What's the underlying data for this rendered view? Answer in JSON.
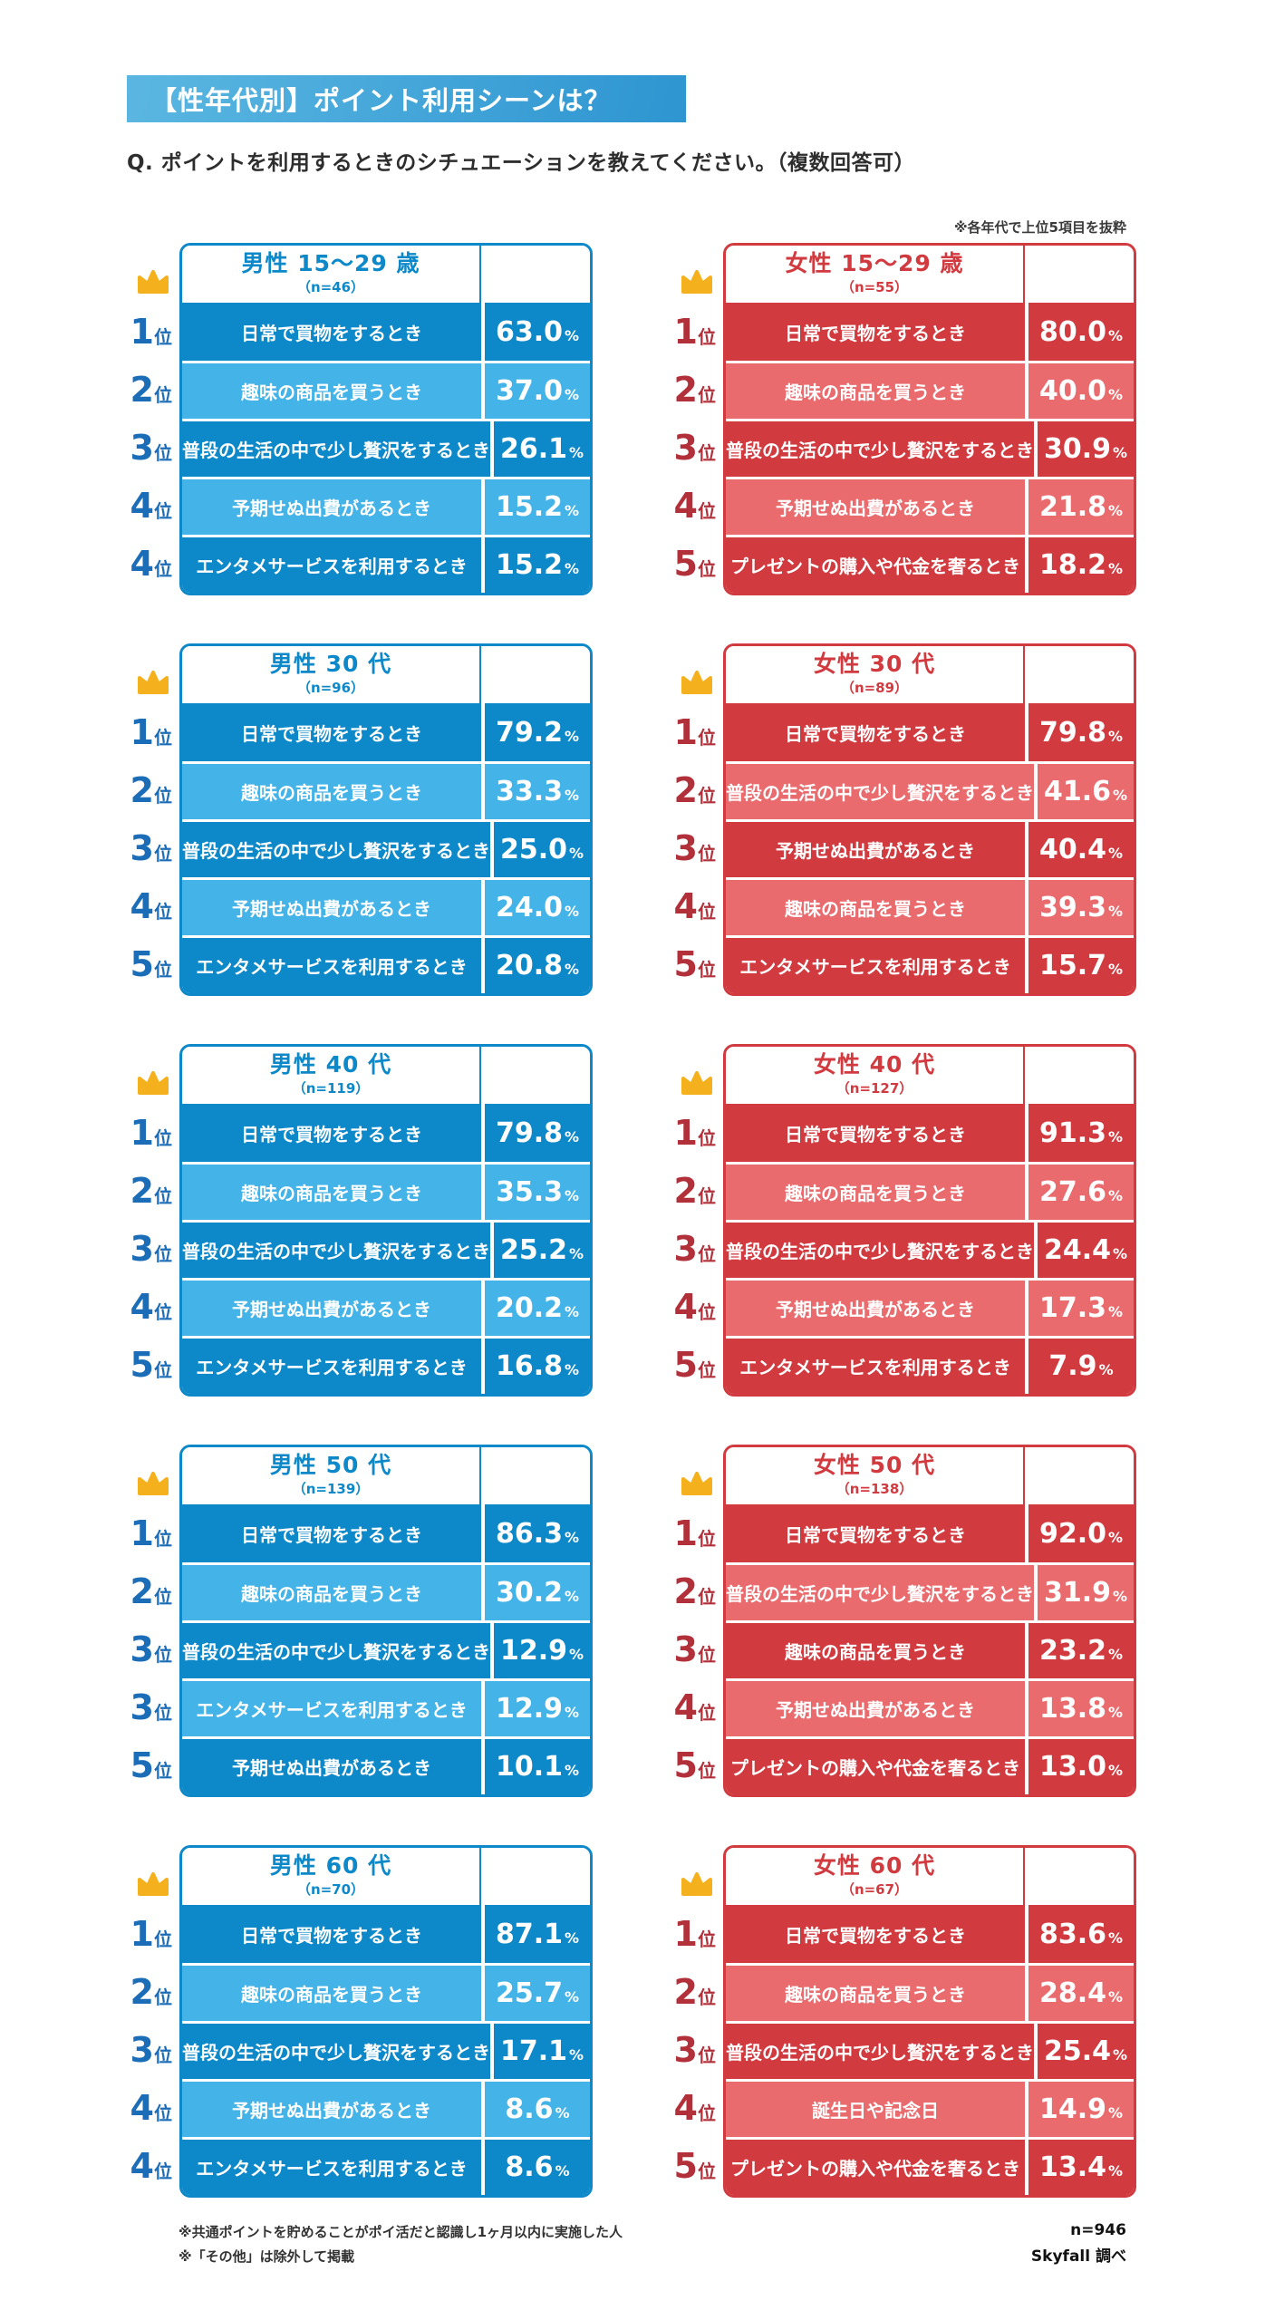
{
  "page": {
    "title": "【性年代別】ポイント利用シーンは？",
    "question": "Q. ポイントを利用するときのシチュエーションを教えてください。（複数回答可）",
    "note": "※各年代で上位5項目を抜粋",
    "footnotes": [
      "※共通ポイントを貯めることがポイ活だと認識し1ヶ月以内に実施した人",
      "※「その他」は除外して掲載"
    ],
    "sample": "n=946",
    "source": "Skyfall 調べ"
  },
  "colors": {
    "male_dark": "#0d88c8",
    "male_light": "#43b3e8",
    "male_rank": "#1b6db7",
    "female_dark": "#d13a3f",
    "female_light": "#e96b6e",
    "female_rank": "#b1303a",
    "crown": "#f5b11d",
    "titlebar_from": "#5bb7e1",
    "titlebar_to": "#2e95d1"
  },
  "chart_data": {
    "type": "table",
    "unit": "%",
    "rank_suffix": "位",
    "tables": [
      {
        "theme": "blue",
        "title": "男性 15〜29 歳",
        "n": "（n=46）",
        "rows": [
          {
            "rank": "1",
            "label": "日常で買物をするとき",
            "value": "63.0"
          },
          {
            "rank": "2",
            "label": "趣味の商品を買うとき",
            "value": "37.0"
          },
          {
            "rank": "3",
            "label": "普段の生活の中で少し贅沢をするとき",
            "value": "26.1"
          },
          {
            "rank": "4",
            "label": "予期せぬ出費があるとき",
            "value": "15.2"
          },
          {
            "rank": "4",
            "label": "エンタメサービスを利用するとき",
            "value": "15.2"
          }
        ]
      },
      {
        "theme": "red",
        "title": "女性 15〜29 歳",
        "n": "（n=55）",
        "rows": [
          {
            "rank": "1",
            "label": "日常で買物をするとき",
            "value": "80.0"
          },
          {
            "rank": "2",
            "label": "趣味の商品を買うとき",
            "value": "40.0"
          },
          {
            "rank": "3",
            "label": "普段の生活の中で少し贅沢をするとき",
            "value": "30.9"
          },
          {
            "rank": "4",
            "label": "予期せぬ出費があるとき",
            "value": "21.8"
          },
          {
            "rank": "5",
            "label": "プレゼントの購入や代金を奢るとき",
            "value": "18.2"
          }
        ]
      },
      {
        "theme": "blue",
        "title": "男性 30 代",
        "n": "（n=96）",
        "rows": [
          {
            "rank": "1",
            "label": "日常で買物をするとき",
            "value": "79.2"
          },
          {
            "rank": "2",
            "label": "趣味の商品を買うとき",
            "value": "33.3"
          },
          {
            "rank": "3",
            "label": "普段の生活の中で少し贅沢をするとき",
            "value": "25.0"
          },
          {
            "rank": "4",
            "label": "予期せぬ出費があるとき",
            "value": "24.0"
          },
          {
            "rank": "5",
            "label": "エンタメサービスを利用するとき",
            "value": "20.8"
          }
        ]
      },
      {
        "theme": "red",
        "title": "女性 30 代",
        "n": "（n=89）",
        "rows": [
          {
            "rank": "1",
            "label": "日常で買物をするとき",
            "value": "79.8"
          },
          {
            "rank": "2",
            "label": "普段の生活の中で少し贅沢をするとき",
            "value": "41.6"
          },
          {
            "rank": "3",
            "label": "予期せぬ出費があるとき",
            "value": "40.4"
          },
          {
            "rank": "4",
            "label": "趣味の商品を買うとき",
            "value": "39.3"
          },
          {
            "rank": "5",
            "label": "エンタメサービスを利用するとき",
            "value": "15.7"
          }
        ]
      },
      {
        "theme": "blue",
        "title": "男性 40 代",
        "n": "（n=119）",
        "rows": [
          {
            "rank": "1",
            "label": "日常で買物をするとき",
            "value": "79.8"
          },
          {
            "rank": "2",
            "label": "趣味の商品を買うとき",
            "value": "35.3"
          },
          {
            "rank": "3",
            "label": "普段の生活の中で少し贅沢をするとき",
            "value": "25.2"
          },
          {
            "rank": "4",
            "label": "予期せぬ出費があるとき",
            "value": "20.2"
          },
          {
            "rank": "5",
            "label": "エンタメサービスを利用するとき",
            "value": "16.8"
          }
        ]
      },
      {
        "theme": "red",
        "title": "女性 40 代",
        "n": "（n=127）",
        "rows": [
          {
            "rank": "1",
            "label": "日常で買物をするとき",
            "value": "91.3"
          },
          {
            "rank": "2",
            "label": "趣味の商品を買うとき",
            "value": "27.6"
          },
          {
            "rank": "3",
            "label": "普段の生活の中で少し贅沢をするとき",
            "value": "24.4"
          },
          {
            "rank": "4",
            "label": "予期せぬ出費があるとき",
            "value": "17.3"
          },
          {
            "rank": "5",
            "label": "エンタメサービスを利用するとき",
            "value": "7.9"
          }
        ]
      },
      {
        "theme": "blue",
        "title": "男性 50 代",
        "n": "（n=139）",
        "rows": [
          {
            "rank": "1",
            "label": "日常で買物をするとき",
            "value": "86.3"
          },
          {
            "rank": "2",
            "label": "趣味の商品を買うとき",
            "value": "30.2"
          },
          {
            "rank": "3",
            "label": "普段の生活の中で少し贅沢をするとき",
            "value": "12.9"
          },
          {
            "rank": "3",
            "label": "エンタメサービスを利用するとき",
            "value": "12.9"
          },
          {
            "rank": "5",
            "label": "予期せぬ出費があるとき",
            "value": "10.1"
          }
        ]
      },
      {
        "theme": "red",
        "title": "女性 50 代",
        "n": "（n=138）",
        "rows": [
          {
            "rank": "1",
            "label": "日常で買物をするとき",
            "value": "92.0"
          },
          {
            "rank": "2",
            "label": "普段の生活の中で少し贅沢をするとき",
            "value": "31.9"
          },
          {
            "rank": "3",
            "label": "趣味の商品を買うとき",
            "value": "23.2"
          },
          {
            "rank": "4",
            "label": "予期せぬ出費があるとき",
            "value": "13.8"
          },
          {
            "rank": "5",
            "label": "プレゼントの購入や代金を奢るとき",
            "value": "13.0"
          }
        ]
      },
      {
        "theme": "blue",
        "title": "男性 60 代",
        "n": "（n=70）",
        "rows": [
          {
            "rank": "1",
            "label": "日常で買物をするとき",
            "value": "87.1"
          },
          {
            "rank": "2",
            "label": "趣味の商品を買うとき",
            "value": "25.7"
          },
          {
            "rank": "3",
            "label": "普段の生活の中で少し贅沢をするとき",
            "value": "17.1"
          },
          {
            "rank": "4",
            "label": "予期せぬ出費があるとき",
            "value": "8.6"
          },
          {
            "rank": "4",
            "label": "エンタメサービスを利用するとき",
            "value": "8.6"
          }
        ]
      },
      {
        "theme": "red",
        "title": "女性 60 代",
        "n": "（n=67）",
        "rows": [
          {
            "rank": "1",
            "label": "日常で買物をするとき",
            "value": "83.6"
          },
          {
            "rank": "2",
            "label": "趣味の商品を買うとき",
            "value": "28.4"
          },
          {
            "rank": "3",
            "label": "普段の生活の中で少し贅沢をするとき",
            "value": "25.4"
          },
          {
            "rank": "4",
            "label": "誕生日や記念日",
            "value": "14.9"
          },
          {
            "rank": "5",
            "label": "プレゼントの購入や代金を奢るとき",
            "value": "13.4"
          }
        ]
      }
    ]
  }
}
